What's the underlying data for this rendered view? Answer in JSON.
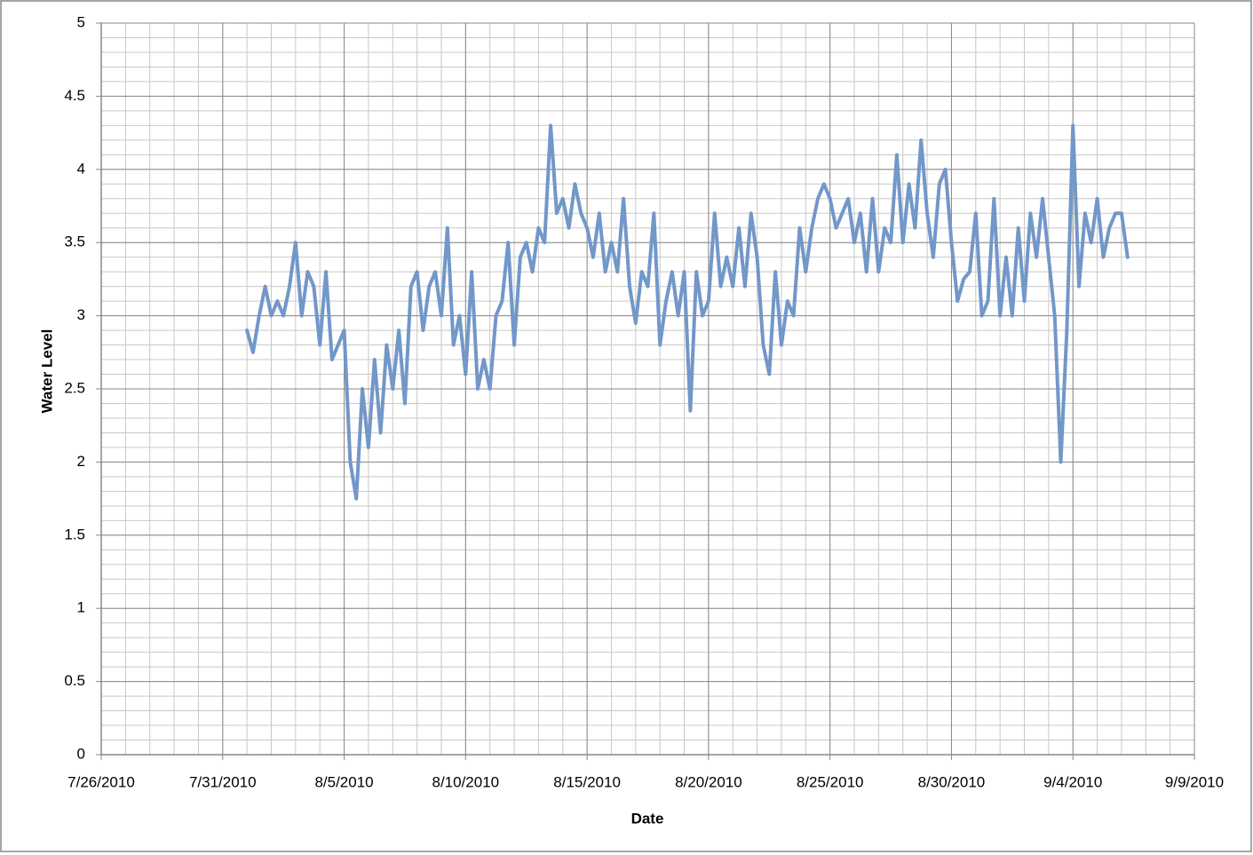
{
  "chart_data": {
    "type": "line",
    "xlabel": "Date",
    "ylabel": "Water Level",
    "x": [
      40391,
      40391.25,
      40391.5,
      40391.75,
      40392,
      40392.25,
      40392.5,
      40392.75,
      40393,
      40393.25,
      40393.5,
      40393.75,
      40394,
      40394.25,
      40394.5,
      40394.75,
      40395,
      40395.25,
      40395.5,
      40395.75,
      40396,
      40396.25,
      40396.5,
      40396.75,
      40397,
      40397.25,
      40397.5,
      40397.75,
      40398,
      40398.25,
      40398.5,
      40398.75,
      40399,
      40399.25,
      40399.5,
      40399.75,
      40400,
      40400.25,
      40400.5,
      40400.75,
      40401,
      40401.25,
      40401.5,
      40401.75,
      40402,
      40402.25,
      40402.5,
      40402.75,
      40403,
      40403.25,
      40403.5,
      40403.75,
      40404,
      40404.25,
      40404.5,
      40404.75,
      40405,
      40405.25,
      40405.5,
      40405.75,
      40406,
      40406.25,
      40406.5,
      40406.75,
      40407,
      40407.25,
      40407.5,
      40407.75,
      40408,
      40408.25,
      40408.5,
      40408.75,
      40409,
      40409.25,
      40409.5,
      40409.75,
      40410,
      40410.25,
      40410.5,
      40410.75,
      40411,
      40411.25,
      40411.5,
      40411.75,
      40412,
      40412.25,
      40412.5,
      40412.75,
      40413,
      40413.25,
      40413.5,
      40413.75,
      40414,
      40414.25,
      40414.5,
      40414.75,
      40415,
      40415.25,
      40415.5,
      40415.75,
      40416,
      40416.25,
      40416.5,
      40416.75,
      40417,
      40417.25,
      40417.5,
      40417.75,
      40418,
      40418.25,
      40418.5,
      40418.75,
      40419,
      40419.25,
      40419.5,
      40419.75,
      40420,
      40420.25,
      40420.5,
      40420.75,
      40421,
      40421.25,
      40421.5,
      40421.75,
      40422,
      40422.25,
      40422.5,
      40422.75,
      40423,
      40423.25,
      40423.5,
      40423.75,
      40424,
      40424.25,
      40424.5,
      40424.75,
      40425,
      40425.25,
      40425.5,
      40425.75,
      40426,
      40426.25,
      40426.5,
      40426.75,
      40427,
      40427.25
    ],
    "values": [
      2.9,
      2.75,
      3.0,
      3.2,
      3.0,
      3.1,
      3.0,
      3.2,
      3.5,
      3.0,
      3.3,
      3.2,
      2.8,
      3.3,
      2.7,
      2.8,
      2.9,
      2.0,
      1.75,
      2.5,
      2.1,
      2.7,
      2.2,
      2.8,
      2.5,
      2.9,
      2.4,
      3.2,
      3.3,
      2.9,
      3.2,
      3.3,
      3.0,
      3.6,
      2.8,
      3.0,
      2.6,
      3.3,
      2.5,
      2.7,
      2.5,
      3.0,
      3.1,
      3.5,
      2.8,
      3.4,
      3.5,
      3.3,
      3.6,
      3.5,
      4.3,
      3.7,
      3.8,
      3.6,
      3.9,
      3.7,
      3.6,
      3.4,
      3.7,
      3.3,
      3.5,
      3.3,
      3.8,
      3.2,
      2.95,
      3.3,
      3.2,
      3.7,
      2.8,
      3.1,
      3.3,
      3.0,
      3.3,
      2.35,
      3.3,
      3.0,
      3.1,
      3.7,
      3.2,
      3.4,
      3.2,
      3.6,
      3.2,
      3.7,
      3.4,
      2.8,
      2.6,
      3.3,
      2.8,
      3.1,
      3.0,
      3.6,
      3.3,
      3.6,
      3.8,
      3.9,
      3.8,
      3.6,
      3.7,
      3.8,
      3.5,
      3.7,
      3.3,
      3.8,
      3.3,
      3.6,
      3.5,
      4.1,
      3.5,
      3.9,
      3.6,
      4.2,
      3.7,
      3.4,
      3.9,
      4.0,
      3.5,
      3.1,
      3.25,
      3.3,
      3.7,
      3.0,
      3.1,
      3.8,
      3.0,
      3.4,
      3.0,
      3.6,
      3.1,
      3.7,
      3.4,
      3.8,
      3.4,
      3.0,
      2.0,
      2.9,
      4.3,
      3.2,
      3.7,
      3.5,
      3.8,
      3.4,
      3.6,
      3.7,
      3.7,
      3.4
    ],
    "color": "#7297c9",
    "xlim": [
      40385,
      40430
    ],
    "xticks": [
      {
        "value": 40385,
        "label": "7/26/2010"
      },
      {
        "value": 40390,
        "label": "7/31/2010"
      },
      {
        "value": 40395,
        "label": "8/5/2010"
      },
      {
        "value": 40400,
        "label": "8/10/2010"
      },
      {
        "value": 40405,
        "label": "8/15/2010"
      },
      {
        "value": 40410,
        "label": "8/20/2010"
      },
      {
        "value": 40415,
        "label": "8/25/2010"
      },
      {
        "value": 40420,
        "label": "8/30/2010"
      },
      {
        "value": 40425,
        "label": "9/4/2010"
      },
      {
        "value": 40430,
        "label": "9/9/2010"
      }
    ],
    "ylim": [
      0,
      5
    ],
    "yticks": [
      0,
      0.5,
      1,
      1.5,
      2,
      2.5,
      3,
      3.5,
      4,
      4.5,
      5
    ],
    "grid": true,
    "x_minor_step": 1,
    "y_minor_step": 0.1
  }
}
